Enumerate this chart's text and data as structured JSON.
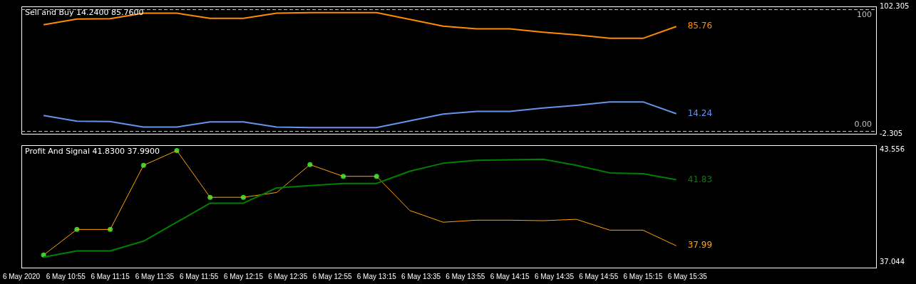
{
  "chart_data": [
    {
      "type": "line",
      "title": "Sell and Buy 14.2400 85.7600",
      "x": [
        "2020-05-06T10:45",
        "2020-05-06T11:00",
        "2020-05-06T11:15",
        "2020-05-06T11:30",
        "2020-05-06T11:45",
        "2020-05-06T12:00",
        "2020-05-06T12:15",
        "2020-05-06T12:30",
        "2020-05-06T12:45",
        "2020-05-06T13:00",
        "2020-05-06T13:15",
        "2020-05-06T13:30",
        "2020-05-06T13:45",
        "2020-05-06T14:00",
        "2020-05-06T14:15",
        "2020-05-06T14:30",
        "2020-05-06T14:45",
        "2020-05-06T15:00",
        "2020-05-06T15:15",
        "2020-05-06T15:30"
      ],
      "series": [
        {
          "color": "#ff8c00",
          "values": [
            87.2,
            91.9,
            92.2,
            96.7,
            96.7,
            92.5,
            92.5,
            96.7,
            97.2,
            97.2,
            97.2,
            91.7,
            86.1,
            83.9,
            83.9,
            81.1,
            78.9,
            76.1,
            76.1,
            85.76
          ],
          "value_labels": [
            null,
            null,
            null,
            null,
            null,
            null,
            null,
            null,
            null,
            null,
            null,
            null,
            null,
            null,
            null,
            null,
            null,
            null,
            null,
            "85.76"
          ]
        },
        {
          "color": "#6495ed",
          "values": [
            12.8,
            8.1,
            7.8,
            3.3,
            3.3,
            7.5,
            7.5,
            3.3,
            2.8,
            2.8,
            2.8,
            8.3,
            13.9,
            16.1,
            16.1,
            18.9,
            21.1,
            23.9,
            23.9,
            14.24
          ],
          "value_labels": [
            null,
            null,
            null,
            null,
            null,
            null,
            null,
            null,
            null,
            null,
            null,
            null,
            null,
            null,
            null,
            null,
            null,
            null,
            null,
            "14.24"
          ]
        }
      ],
      "xlim": [
        "2020-05-06T10:35",
        "2020-05-06T17:00"
      ],
      "ylim": [
        -2.305,
        102.305
      ],
      "yticks": [
        -2.305,
        102.305
      ],
      "ref_lines": [
        {
          "axis": "y",
          "value": 100,
          "label": "100",
          "color": "#c0c0c0",
          "line_style": "dashed"
        },
        {
          "axis": "y",
          "value": 0,
          "label": "0.00",
          "color": "#c0c0c0",
          "line_style": "dashed"
        }
      ],
      "grid": false,
      "legend": false,
      "marker": "none",
      "line_style": "solid",
      "tick_labels": "y"
    },
    {
      "type": "line",
      "title": "Profit And Signal 41.8300 37.9900",
      "x": [
        "2020-05-06T10:45",
        "2020-05-06T11:00",
        "2020-05-06T11:15",
        "2020-05-06T11:30",
        "2020-05-06T11:45",
        "2020-05-06T12:00",
        "2020-05-06T12:15",
        "2020-05-06T12:30",
        "2020-05-06T12:45",
        "2020-05-06T13:00",
        "2020-05-06T13:15",
        "2020-05-06T13:30",
        "2020-05-06T13:45",
        "2020-05-06T14:00",
        "2020-05-06T14:15",
        "2020-05-06T14:30",
        "2020-05-06T14:45",
        "2020-05-06T15:00",
        "2020-05-06T15:15",
        "2020-05-06T15:30"
      ],
      "series": [
        {
          "color": "#008000",
          "values": [
            37.33,
            37.69,
            37.69,
            38.26,
            39.36,
            40.47,
            40.47,
            41.36,
            41.49,
            41.62,
            41.62,
            42.33,
            42.79,
            42.96,
            42.99,
            43.02,
            42.67,
            42.23,
            42.18,
            41.83
          ],
          "value_labels": [
            null,
            null,
            null,
            null,
            null,
            null,
            null,
            null,
            null,
            null,
            null,
            null,
            null,
            null,
            null,
            null,
            null,
            null,
            null,
            "41.83"
          ]
        },
        {
          "color": "#ffa500",
          "values": [
            37.45,
            38.94,
            38.94,
            42.67,
            43.53,
            40.81,
            40.81,
            41.09,
            42.71,
            42.03,
            42.03,
            40.04,
            39.36,
            39.48,
            39.48,
            39.45,
            39.53,
            38.9,
            38.9,
            37.99
          ],
          "value_labels": [
            null,
            null,
            null,
            null,
            null,
            null,
            null,
            null,
            null,
            null,
            null,
            null,
            null,
            null,
            null,
            null,
            null,
            null,
            null,
            "37.99"
          ]
        },
        {
          "type": "scatter",
          "color": "#32cd32",
          "marker": "circle",
          "values": [
            37.45,
            38.94,
            38.94,
            42.67,
            43.53,
            40.81,
            40.81,
            null,
            42.71,
            42.03,
            42.03,
            null,
            null,
            null,
            null,
            null,
            null,
            null,
            null,
            null
          ]
        }
      ],
      "xlim": [
        "2020-05-06T10:35",
        "2020-05-06T17:00"
      ],
      "xticks": [
        {
          "value": "2020-05-06T10:35",
          "label": "6 May 2020"
        },
        {
          "value": "2020-05-06T10:55",
          "label": "6 May 10:55"
        },
        {
          "value": "2020-05-06T11:15",
          "label": "6 May 11:15"
        },
        {
          "value": "2020-05-06T11:35",
          "label": "6 May 11:35"
        },
        {
          "value": "2020-05-06T11:55",
          "label": "6 May 11:55"
        },
        {
          "value": "2020-05-06T12:15",
          "label": "6 May 12:15"
        },
        {
          "value": "2020-05-06T12:35",
          "label": "6 May 12:35"
        },
        {
          "value": "2020-05-06T12:55",
          "label": "6 May 12:55"
        },
        {
          "value": "2020-05-06T13:15",
          "label": "6 May 13:15"
        },
        {
          "value": "2020-05-06T13:35",
          "label": "6 May 13:35"
        },
        {
          "value": "2020-05-06T13:55",
          "label": "6 May 13:55"
        },
        {
          "value": "2020-05-06T14:15",
          "label": "6 May 14:15"
        },
        {
          "value": "2020-05-06T14:35",
          "label": "6 May 14:35"
        },
        {
          "value": "2020-05-06T14:55",
          "label": "6 May 14:55"
        },
        {
          "value": "2020-05-06T15:15",
          "label": "6 May 15:15"
        },
        {
          "value": "2020-05-06T15:35",
          "label": "6 May 15:35"
        }
      ],
      "ylim": [
        36.72,
        43.84
      ],
      "yticks": [
        37.044,
        43.556
      ],
      "grid": false,
      "legend": false,
      "marker": "none",
      "line_style": "solid"
    }
  ]
}
